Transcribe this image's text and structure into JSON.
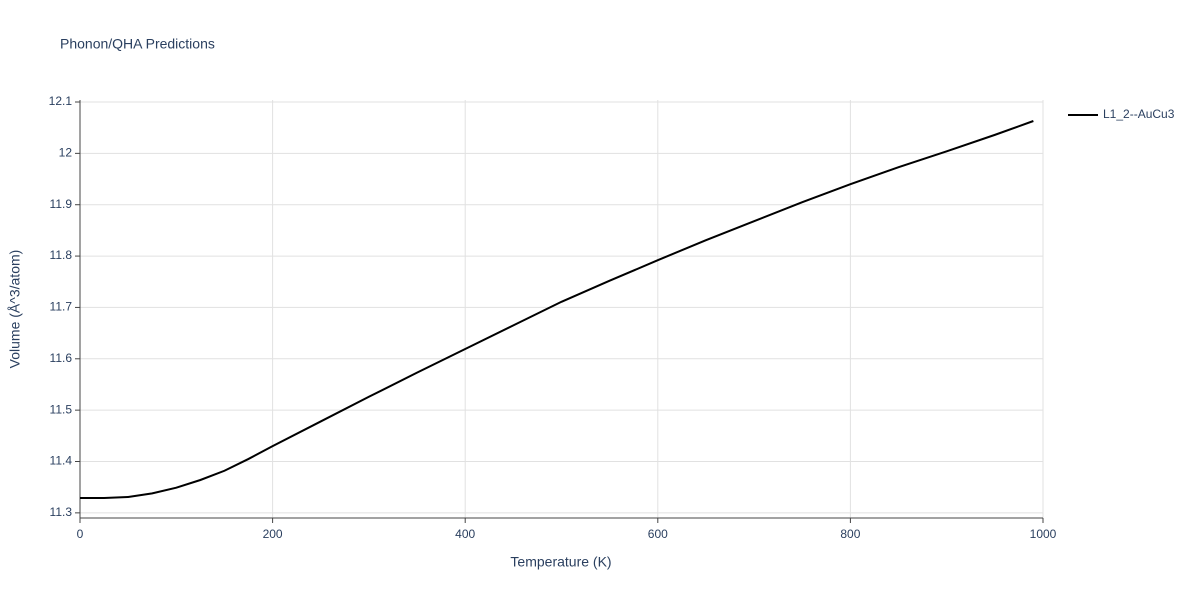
{
  "chart_data": {
    "type": "line",
    "title": "Phonon/QHA Predictions",
    "x_label": "Temperature (K)",
    "y_label": "Volume (Å^3/atom)",
    "x": [
      0,
      25,
      50,
      75,
      100,
      125,
      150,
      175,
      200,
      250,
      300,
      350,
      400,
      450,
      500,
      550,
      600,
      650,
      700,
      750,
      800,
      850,
      900,
      950,
      990
    ],
    "series": [
      {
        "name": "L1_2--AuCu3",
        "color": "#000000",
        "values": [
          11.329,
          11.329,
          11.331,
          11.338,
          11.349,
          11.364,
          11.382,
          11.405,
          11.43,
          11.478,
          11.526,
          11.573,
          11.619,
          11.665,
          11.711,
          11.752,
          11.792,
          11.831,
          11.868,
          11.905,
          11.94,
          11.973,
          12.004,
          12.036,
          12.063
        ]
      }
    ],
    "xlim": [
      0,
      1000
    ],
    "xticks": [
      0,
      200,
      400,
      600,
      800,
      1000
    ],
    "ylim": [
      11.29,
      12.1
    ],
    "yticks": [
      11.3,
      11.4,
      11.5,
      11.6,
      11.7,
      11.8,
      11.9,
      12,
      12.1
    ],
    "grid": true,
    "legend": "right"
  }
}
